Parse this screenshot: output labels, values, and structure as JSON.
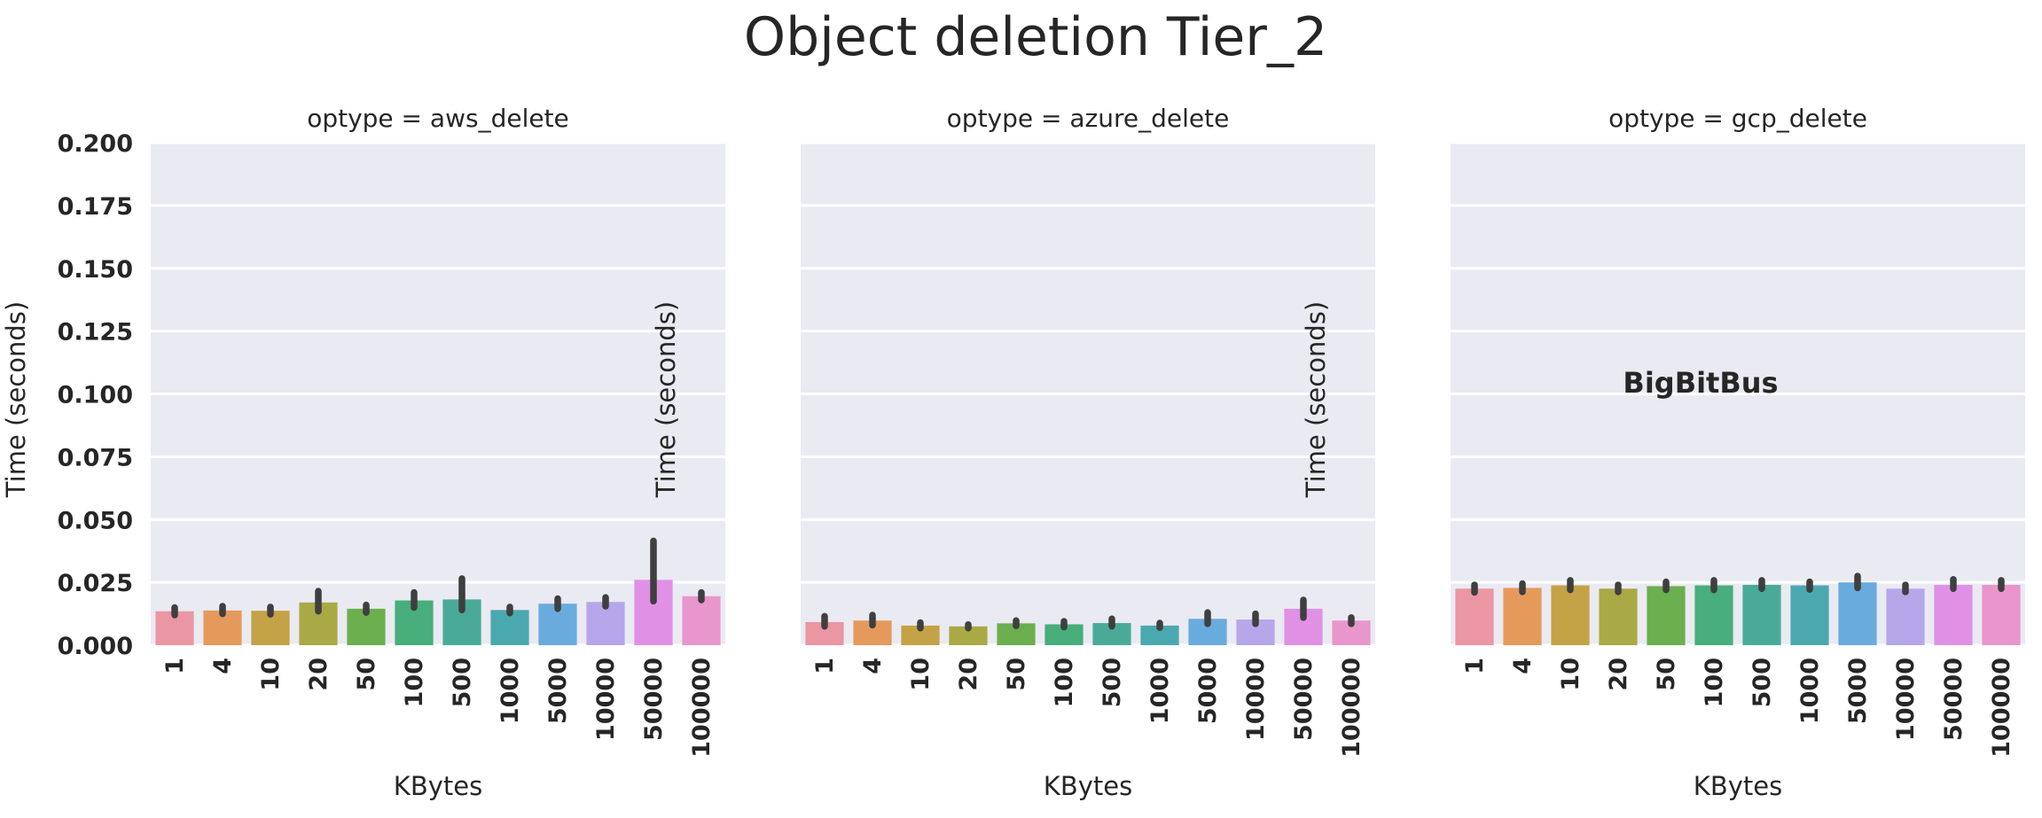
{
  "chart_data": {
    "type": "bar",
    "title": "Object deletion Tier_2",
    "ylabel": "Time (seconds)",
    "xlabel": "KBytes",
    "ylim": [
      0,
      0.2
    ],
    "yticks": [
      "0.000",
      "0.025",
      "0.050",
      "0.075",
      "0.100",
      "0.125",
      "0.150",
      "0.175",
      "0.200"
    ],
    "categories": [
      "1",
      "4",
      "10",
      "20",
      "50",
      "100",
      "500",
      "1000",
      "5000",
      "10000",
      "50000",
      "100000"
    ],
    "bar_colors": [
      "#ea96a3",
      "#e59a5c",
      "#c4a246",
      "#a9a946",
      "#6caf4e",
      "#47ae7c",
      "#49ab97",
      "#4aa9ae",
      "#6aabde",
      "#b5a7ea",
      "#e091e6",
      "#e896cc"
    ],
    "grid": true,
    "watermark": "BigBitBus",
    "panels": [
      {
        "title": "optype = aws_delete",
        "values": [
          0.0135,
          0.0138,
          0.0137,
          0.017,
          0.0145,
          0.0178,
          0.0182,
          0.014,
          0.0165,
          0.0172,
          0.026,
          0.0195
        ],
        "ci_low": [
          0.012,
          0.0125,
          0.0123,
          0.0135,
          0.013,
          0.015,
          0.014,
          0.0128,
          0.0145,
          0.0155,
          0.0175,
          0.018
        ],
        "ci_high": [
          0.015,
          0.0155,
          0.0152,
          0.0215,
          0.016,
          0.021,
          0.0265,
          0.0152,
          0.0185,
          0.019,
          0.0415,
          0.021
        ]
      },
      {
        "title": "optype = azure_delete",
        "values": [
          0.0092,
          0.0098,
          0.0078,
          0.0075,
          0.0087,
          0.0083,
          0.0088,
          0.0078,
          0.0105,
          0.0102,
          0.0145,
          0.0098
        ],
        "ci_low": [
          0.0075,
          0.008,
          0.0068,
          0.0068,
          0.0077,
          0.0072,
          0.0075,
          0.007,
          0.0085,
          0.0085,
          0.011,
          0.0085
        ],
        "ci_high": [
          0.0115,
          0.012,
          0.009,
          0.0082,
          0.0098,
          0.0095,
          0.0105,
          0.0088,
          0.013,
          0.0125,
          0.018,
          0.011
        ]
      },
      {
        "title": "optype = gcp_delete",
        "values": [
          0.0225,
          0.0228,
          0.0238,
          0.0225,
          0.0235,
          0.0238,
          0.024,
          0.0238,
          0.025,
          0.0225,
          0.024,
          0.024
        ],
        "ci_low": [
          0.021,
          0.0212,
          0.022,
          0.0212,
          0.022,
          0.022,
          0.0225,
          0.0222,
          0.0228,
          0.0212,
          0.0225,
          0.0225
        ],
        "ci_high": [
          0.024,
          0.0245,
          0.0258,
          0.024,
          0.0252,
          0.0258,
          0.0258,
          0.0252,
          0.0275,
          0.024,
          0.0262,
          0.0258
        ]
      }
    ]
  }
}
